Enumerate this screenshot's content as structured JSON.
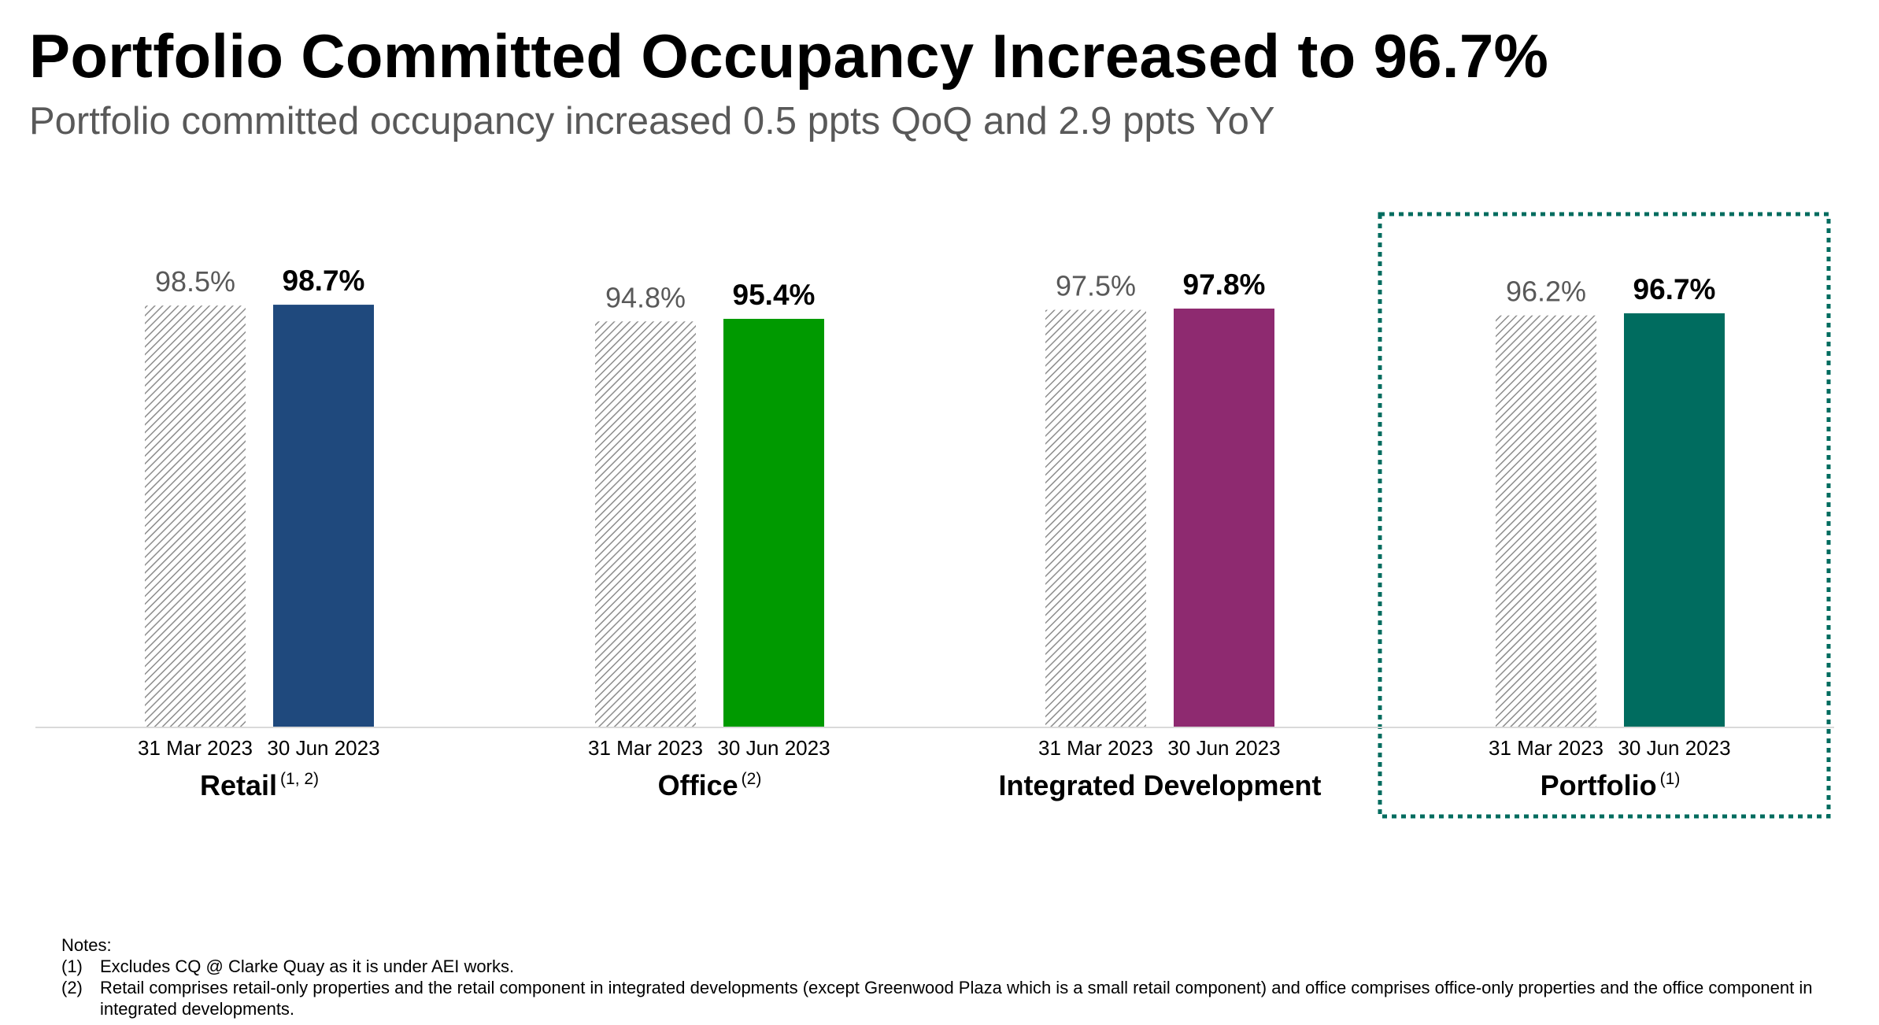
{
  "header": {
    "title": "Portfolio Committed Occupancy Increased to 96.7%",
    "subtitle": "Portfolio committed occupancy increased 0.5 ppts QoQ and 2.9 ppts YoY"
  },
  "chart_data": {
    "type": "bar",
    "unit": "%",
    "period_labels": [
      "31 Mar 2023",
      "30 Jun 2023"
    ],
    "groups": [
      {
        "name": "Retail",
        "footnote": "(1, 2)",
        "values": [
          98.5,
          98.7
        ],
        "value_labels": [
          "98.5%",
          "98.7%"
        ],
        "color": "#1f497d",
        "highlighted": false
      },
      {
        "name": "Office",
        "footnote": "(2)",
        "values": [
          94.8,
          95.4
        ],
        "value_labels": [
          "94.8%",
          "95.4%"
        ],
        "color": "#009a00",
        "highlighted": false
      },
      {
        "name": "Integrated Development",
        "footnote": "",
        "values": [
          97.5,
          97.8
        ],
        "value_labels": [
          "97.5%",
          "97.8%"
        ],
        "color": "#8e2a70",
        "highlighted": false
      },
      {
        "name": "Portfolio",
        "footnote": "(1)",
        "values": [
          96.2,
          96.7
        ],
        "value_labels": [
          "96.2%",
          "96.7%"
        ],
        "color": "#006c5f",
        "highlighted": true
      }
    ],
    "previous_period_style": "hatched grey",
    "highlight_box_color": "#006c5f",
    "ylim": [
      0,
      100
    ],
    "grid": false
  },
  "notes": {
    "heading": "Notes:",
    "items": [
      {
        "num": "(1)",
        "text": "Excludes CQ @ Clarke Quay as it is under AEI works."
      },
      {
        "num": "(2)",
        "text": "Retail comprises retail-only properties and the retail component in integrated developments (except Greenwood Plaza which is a small retail component) and office comprises office-only properties and the office component in integrated developments."
      }
    ]
  }
}
